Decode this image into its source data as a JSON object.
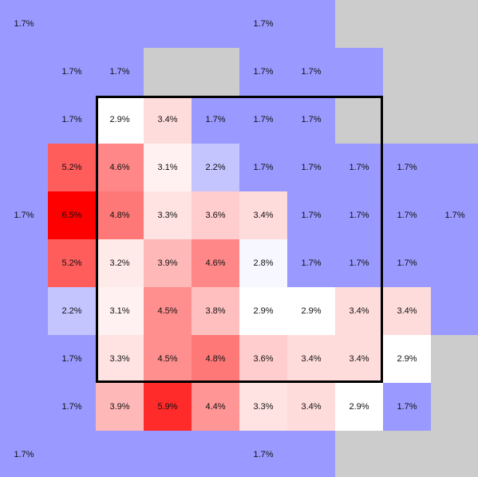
{
  "chart_data": {
    "type": "heatmap",
    "title": "",
    "xlabel": "",
    "ylabel": "",
    "rows": 10,
    "cols": 10,
    "value_unit": "%",
    "value_range": [
      1.7,
      6.5
    ],
    "colors": {
      "low": "#9999ff",
      "mid": "#ffffff",
      "high": "#ff0000",
      "missing": "#cccccc",
      "highlight_border": "#000000"
    },
    "labelled_value": "1.7%",
    "values": [
      [
        1.7,
        1.7,
        1.7,
        1.7,
        1.7,
        1.7,
        1.7,
        null,
        null,
        null
      ],
      [
        1.7,
        1.7,
        1.7,
        null,
        null,
        1.7,
        1.7,
        1.7,
        null,
        null
      ],
      [
        1.7,
        1.7,
        2.9,
        3.4,
        1.7,
        1.7,
        1.7,
        null,
        null,
        null
      ],
      [
        1.7,
        5.2,
        4.6,
        3.1,
        2.2,
        1.7,
        1.7,
        1.7,
        1.7,
        1.7
      ],
      [
        1.7,
        6.5,
        4.8,
        3.3,
        3.6,
        3.4,
        1.7,
        1.7,
        1.7,
        1.7
      ],
      [
        1.7,
        5.2,
        3.2,
        3.9,
        4.6,
        2.8,
        1.7,
        1.7,
        1.7,
        1.7
      ],
      [
        1.7,
        2.2,
        3.1,
        4.5,
        3.8,
        2.9,
        2.9,
        3.4,
        3.4,
        1.7
      ],
      [
        1.7,
        1.7,
        3.3,
        4.5,
        4.8,
        3.6,
        3.4,
        3.4,
        2.9,
        null
      ],
      [
        1.7,
        1.7,
        3.9,
        5.9,
        4.4,
        3.3,
        3.4,
        2.9,
        1.7,
        null
      ],
      [
        1.7,
        1.7,
        1.7,
        1.7,
        1.7,
        1.7,
        1.7,
        null,
        null,
        null
      ]
    ],
    "labels": [
      [
        "1.7%",
        "",
        "",
        "",
        "",
        "1.7%",
        "",
        "",
        "",
        ""
      ],
      [
        "",
        "1.7%",
        "1.7%",
        "",
        "",
        "1.7%",
        "1.7%",
        "",
        "",
        ""
      ],
      [
        "",
        "1.7%",
        "2.9%",
        "3.4%",
        "1.7%",
        "1.7%",
        "1.7%",
        "",
        "",
        ""
      ],
      [
        "",
        "5.2%",
        "4.6%",
        "3.1%",
        "2.2%",
        "1.7%",
        "1.7%",
        "1.7%",
        "1.7%",
        ""
      ],
      [
        "1.7%",
        "6.5%",
        "4.8%",
        "3.3%",
        "3.6%",
        "3.4%",
        "1.7%",
        "1.7%",
        "1.7%",
        "1.7%"
      ],
      [
        "",
        "5.2%",
        "3.2%",
        "3.9%",
        "4.6%",
        "2.8%",
        "1.7%",
        "1.7%",
        "1.7%",
        ""
      ],
      [
        "",
        "2.2%",
        "3.1%",
        "4.5%",
        "3.8%",
        "2.9%",
        "2.9%",
        "3.4%",
        "3.4%",
        ""
      ],
      [
        "",
        "1.7%",
        "3.3%",
        "4.5%",
        "4.8%",
        "3.6%",
        "3.4%",
        "3.4%",
        "2.9%",
        ""
      ],
      [
        "",
        "1.7%",
        "3.9%",
        "5.9%",
        "4.4%",
        "3.3%",
        "3.4%",
        "2.9%",
        "1.7%",
        ""
      ],
      [
        "1.7%",
        "",
        "",
        "",
        "",
        "1.7%",
        "",
        "",
        "",
        ""
      ]
    ],
    "highlight": {
      "row_start": 2,
      "row_end": 7,
      "col_start": 2,
      "col_end": 7
    },
    "grid": false,
    "legend": "none"
  }
}
